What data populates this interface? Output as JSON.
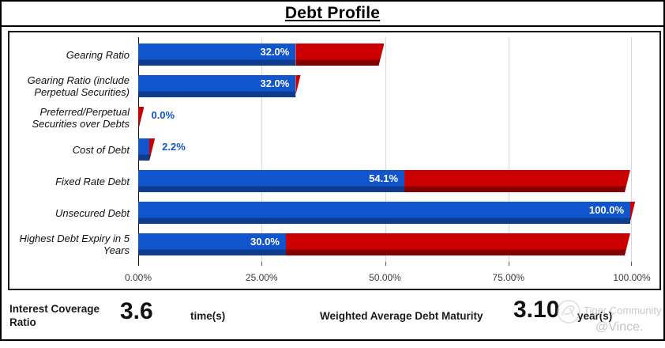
{
  "window": {
    "title": "Debt Profile"
  },
  "chart_data": {
    "type": "bar",
    "orientation": "horizontal",
    "title": "Debt Profile",
    "xlabel": "",
    "ylabel": "",
    "xlim": [
      0,
      100
    ],
    "x_tick_labels": [
      "0.00%",
      "25.00%",
      "50.00%",
      "75.00%",
      "100.00%"
    ],
    "x_tick_values": [
      0,
      25,
      50,
      75,
      100
    ],
    "grid": "vertical-light-gray",
    "legend": "none",
    "series_colors": {
      "primary_blue": "#1155cc",
      "secondary_red": "#cc0000"
    },
    "rows": [
      {
        "label": "Gearing Ratio",
        "value": 32.0,
        "value_label": "32.0%",
        "blue_pct": 32.0,
        "red_pct": 18.0,
        "red_end": 50.0,
        "label_inside": true
      },
      {
        "label": "Gearing Ratio (include Perpetual Securities)",
        "value": 32.0,
        "value_label": "32.0%",
        "blue_pct": 32.0,
        "red_pct": 1.0,
        "red_end": 33.0,
        "label_inside": true
      },
      {
        "label": "Preferred/Perpetual Securities over Debts",
        "value": 0.0,
        "value_label": "0.0%",
        "blue_pct": 0.0,
        "red_pct": 1.2,
        "red_end": 1.2,
        "label_inside": false
      },
      {
        "label": "Cost of Debt",
        "value": 2.2,
        "value_label": "2.2%",
        "blue_pct": 2.2,
        "red_pct": 1.2,
        "red_end": 3.4,
        "label_inside": false
      },
      {
        "label": "Fixed Rate Debt",
        "value": 54.1,
        "value_label": "54.1%",
        "blue_pct": 54.1,
        "red_pct": 45.9,
        "red_end": 100.0,
        "label_inside": true
      },
      {
        "label": "Unsecured Debt",
        "value": 100.0,
        "value_label": "100.0%",
        "blue_pct": 100.0,
        "red_pct": 1.0,
        "red_end": 101.0,
        "label_inside": true
      },
      {
        "label": "Highest Debt Expiry in 5 Years",
        "value": 30.0,
        "value_label": "30.0%",
        "blue_pct": 30.0,
        "red_pct": 70.0,
        "red_end": 100.0,
        "label_inside": true
      }
    ]
  },
  "metrics": {
    "icr_label": "Interest Coverage Ratio",
    "icr_value": "3.6",
    "icr_unit": "time(s)",
    "wadm_label": "Weighted Average Debt Maturity",
    "wadm_value": "3.10",
    "wadm_unit": "year(s)"
  },
  "watermark": {
    "line1": "Tiger Community",
    "line2": "@Vince."
  },
  "colors": {
    "bar_blue": "#1155cc",
    "bar_blue_dark": "#0d3b8e",
    "bar_red": "#cc0000",
    "bar_red_dark": "#850101",
    "gridline": "#d8d8d8",
    "value_label_inside": "#ffffff",
    "value_label_outside": "#1155cc",
    "watermark_gray": "#c9c9c9"
  }
}
